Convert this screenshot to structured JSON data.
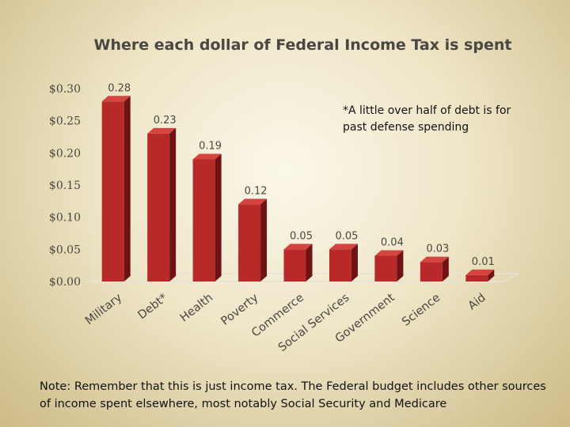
{
  "chart_data": {
    "type": "bar",
    "title": "Where each dollar of Federal Income Tax is spent",
    "categories": [
      "Military",
      "Debt*",
      "Health",
      "Poverty",
      "Commerce",
      "Social Services",
      "Government",
      "Science",
      "Aid"
    ],
    "values": [
      0.28,
      0.23,
      0.19,
      0.12,
      0.05,
      0.05,
      0.04,
      0.03,
      0.01
    ],
    "data_labels": [
      "0.28",
      "0.23",
      "0.19",
      "0.12",
      "0.05",
      "0.05",
      "0.04",
      "0.03",
      "0.01"
    ],
    "y_ticks": [
      "$0.00",
      "$0.05",
      "$0.10",
      "$0.15",
      "$0.20",
      "$0.25",
      "$0.30"
    ],
    "ylim": [
      0,
      0.3
    ],
    "xlabel": "",
    "ylabel": "",
    "grid": false,
    "bar_color": "#b8292a",
    "annotation": "*A little over half of debt is for past defense spending"
  },
  "footnote": "Note:  Remember that this is just income tax.  The Federal budget includes other sources of income spent elsewhere, most notably Social Security and Medicare"
}
